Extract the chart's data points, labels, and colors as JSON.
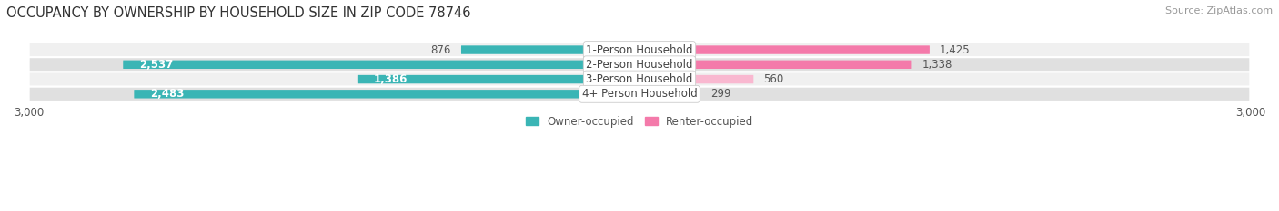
{
  "title": "OCCUPANCY BY OWNERSHIP BY HOUSEHOLD SIZE IN ZIP CODE 78746",
  "source": "Source: ZipAtlas.com",
  "categories": [
    "1-Person Household",
    "2-Person Household",
    "3-Person Household",
    "4+ Person Household"
  ],
  "owner_values": [
    876,
    2537,
    1386,
    2483
  ],
  "renter_values": [
    1425,
    1338,
    560,
    299
  ],
  "xlim": 3000,
  "owner_color": "#3ab5b5",
  "renter_color": "#f47aaa",
  "renter_color_light": "#f9b8d0",
  "row_bg_colors": [
    "#f0f0f0",
    "#e0e0e0",
    "#f0f0f0",
    "#e0e0e0"
  ],
  "title_fontsize": 10.5,
  "source_fontsize": 8,
  "label_fontsize": 8.5,
  "value_fontsize": 8.5,
  "tick_fontsize": 8.5,
  "bar_height": 0.58,
  "background_color": "#ffffff",
  "owner_threshold": 1200,
  "renter_colors_by_row": [
    "#f47aaa",
    "#f47aaa",
    "#f9b8d0",
    "#f9c8d8"
  ]
}
